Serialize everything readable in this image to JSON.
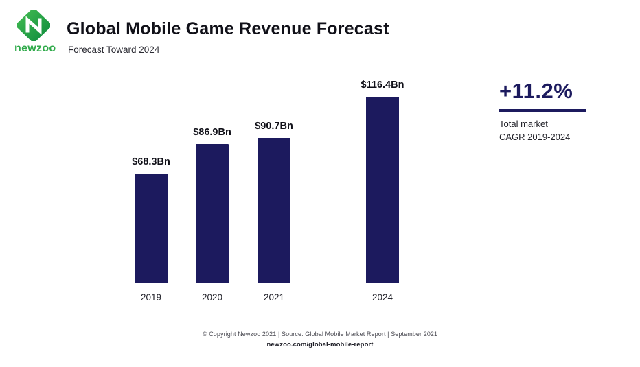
{
  "header": {
    "logo_text": "newzoo",
    "title": "Global Mobile Game Revenue Forecast",
    "subtitle": "Forecast Toward 2024"
  },
  "chart_data": {
    "type": "bar",
    "title": "Global Mobile Game Revenue Forecast",
    "subtitle": "Forecast Toward 2024",
    "categories": [
      "2019",
      "2020",
      "2021",
      "2024"
    ],
    "values": [
      68.3,
      86.9,
      90.7,
      116.4
    ],
    "value_labels": [
      "$68.3Bn",
      "$86.9Bn",
      "$90.7Bn",
      "$116.4Bn"
    ],
    "unit": "USD billions",
    "ylim": [
      0,
      120
    ],
    "grid": false,
    "legend": false,
    "bar_color": "#1c1a5e",
    "note": "x-axis skips 2022 and 2023; wider gap before 2024 bar"
  },
  "annotation": {
    "cagr_value": "+11.2%",
    "line1": "Total market",
    "line2": "CAGR 2019-2024"
  },
  "footer": {
    "copyright": "© Copyright Newzoo 2021 | Source: Global Mobile Market Report | September 2021",
    "link": "newzoo.com/global-mobile-report"
  },
  "colors": {
    "bar_navy": "#1c1a5e",
    "brand_green": "#2faa4a",
    "text_dark": "#101018"
  }
}
